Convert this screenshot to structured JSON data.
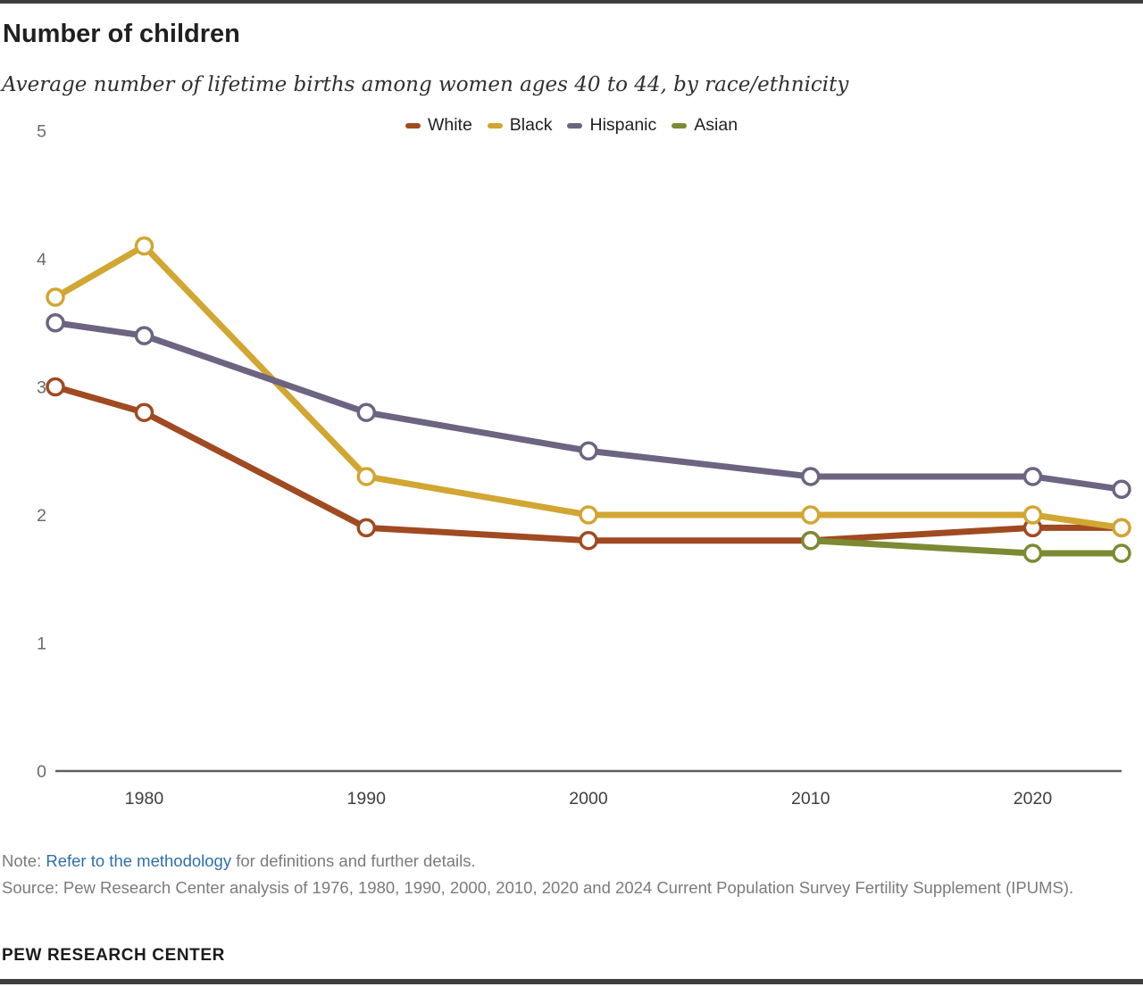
{
  "header": {
    "title": "Number of children",
    "subtitle": "Average number of lifetime births among women ages 40 to 44, by race/ethnicity"
  },
  "chart_data": {
    "type": "line",
    "x": [
      1976,
      1980,
      1990,
      2000,
      2010,
      2020,
      2024
    ],
    "series": [
      {
        "name": "White",
        "color": "#a04a21",
        "points": [
          [
            1976,
            3.0
          ],
          [
            1980,
            2.8
          ],
          [
            1990,
            1.9
          ],
          [
            2000,
            1.8
          ],
          [
            2010,
            1.8
          ],
          [
            2020,
            1.9
          ],
          [
            2024,
            1.9
          ]
        ]
      },
      {
        "name": "Black",
        "color": "#d1a632",
        "points": [
          [
            1976,
            3.7
          ],
          [
            1980,
            4.1
          ],
          [
            1990,
            2.3
          ],
          [
            2000,
            2.0
          ],
          [
            2010,
            2.0
          ],
          [
            2020,
            2.0
          ],
          [
            2024,
            1.9
          ]
        ]
      },
      {
        "name": "Hispanic",
        "color": "#6c6480",
        "points": [
          [
            1976,
            3.5
          ],
          [
            1980,
            3.4
          ],
          [
            1990,
            2.8
          ],
          [
            2000,
            2.5
          ],
          [
            2010,
            2.3
          ],
          [
            2020,
            2.3
          ],
          [
            2024,
            2.2
          ]
        ]
      },
      {
        "name": "Asian",
        "color": "#7d8a34",
        "points": [
          [
            2010,
            1.8
          ],
          [
            2020,
            1.7
          ],
          [
            2024,
            1.7
          ]
        ]
      }
    ],
    "xlim": [
      1976,
      2024
    ],
    "ylim": [
      0,
      5
    ],
    "xticks": [
      "1980",
      "1990",
      "2000",
      "2010",
      "2020"
    ],
    "xtick_years": [
      1980,
      1990,
      2000,
      2010,
      2020
    ],
    "yticks": [
      "0",
      "1",
      "2",
      "3",
      "4",
      "5"
    ],
    "ytick_values": [
      0,
      1,
      2,
      3,
      4,
      5
    ],
    "grid": false,
    "legend_position": "top-center",
    "marker": "open-circle",
    "axis_color": "#5f5f5f",
    "ytick_color": "#6b6b6b",
    "xtick_color": "#3f3f3f"
  },
  "footer": {
    "note_prefix": "Note: ",
    "note_link": "Refer to the methodology",
    "note_suffix": " for definitions and further details.",
    "source": "Source: Pew Research Center analysis of 1976, 1980, 1990, 2000, 2010, 2020 and 2024 Current Population Survey Fertility Supplement (IPUMS).",
    "brand": "PEW RESEARCH CENTER"
  }
}
